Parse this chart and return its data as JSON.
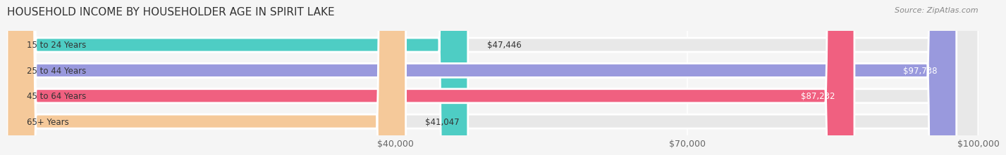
{
  "title": "HOUSEHOLD INCOME BY HOUSEHOLDER AGE IN SPIRIT LAKE",
  "source": "Source: ZipAtlas.com",
  "categories": [
    "15 to 24 Years",
    "25 to 44 Years",
    "45 to 64 Years",
    "65+ Years"
  ],
  "values": [
    47446,
    97738,
    87232,
    41047
  ],
  "bar_colors": [
    "#4ecdc4",
    "#9999dd",
    "#f06080",
    "#f5c99a"
  ],
  "label_colors": [
    "#333333",
    "#ffffff",
    "#ffffff",
    "#333333"
  ],
  "x_min": 0,
  "x_max": 100000,
  "x_ticks": [
    40000,
    70000,
    100000
  ],
  "x_tick_labels": [
    "$40,000",
    "$70,000",
    "$100,000"
  ],
  "background_color": "#f5f5f5",
  "bar_background_color": "#e8e8e8",
  "title_fontsize": 11,
  "source_fontsize": 8,
  "tick_fontsize": 9,
  "label_fontsize": 8.5
}
